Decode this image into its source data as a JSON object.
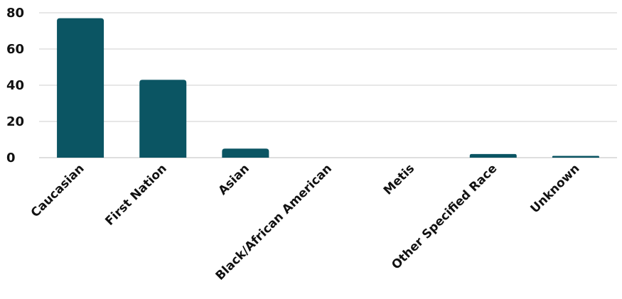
{
  "chart_data": {
    "type": "bar",
    "title": "",
    "xlabel": "",
    "ylabel": "",
    "categories": [
      "Caucasian",
      "First Nation",
      "Asian",
      "Black/African American",
      "Metis",
      "Other Specified Race",
      "Unknown"
    ],
    "values": [
      77,
      43,
      5,
      0,
      0,
      2,
      1
    ],
    "ylim": [
      0,
      80
    ],
    "yticks": [
      0,
      20,
      40,
      60,
      80
    ],
    "grid": true,
    "legend": "none",
    "bar_color": "#0b5563"
  }
}
